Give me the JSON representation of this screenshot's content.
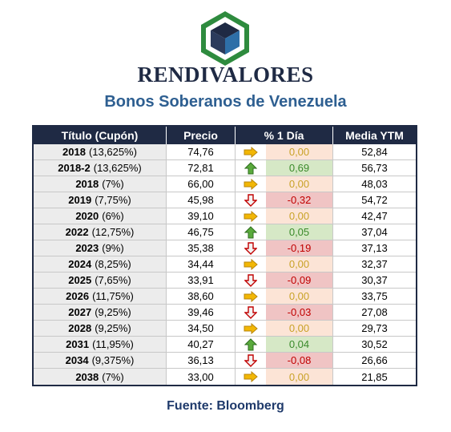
{
  "brand": "RENDIVALORES",
  "subtitle": "Bonos Soberanos de Venezuela",
  "colors": {
    "navy": "#1f2a44",
    "title_blue": "#2e5f91",
    "up": "#3a8a2a",
    "down": "#c00000",
    "flat": "#f2b705"
  },
  "headers": [
    "Título (Cupón)",
    "Precio",
    "% 1 Día",
    "Media YTM"
  ],
  "rows": [
    {
      "year": "2018",
      "coupon": "(13,625%)",
      "price": "74,76",
      "change": "0,00",
      "trend": "flat",
      "ytm": "52,84"
    },
    {
      "year": "2018-2",
      "coupon": "(13,625%)",
      "price": "72,81",
      "change": "0,69",
      "trend": "up",
      "ytm": "56,73"
    },
    {
      "year": "2018",
      "coupon": "(7%)",
      "price": "66,00",
      "change": "0,00",
      "trend": "flat",
      "ytm": "48,03"
    },
    {
      "year": "2019",
      "coupon": "(7,75%)",
      "price": "45,98",
      "change": "-0,32",
      "trend": "down",
      "ytm": "54,72"
    },
    {
      "year": "2020",
      "coupon": "(6%)",
      "price": "39,10",
      "change": "0,00",
      "trend": "flat",
      "ytm": "42,47"
    },
    {
      "year": "2022",
      "coupon": "(12,75%)",
      "price": "46,75",
      "change": "0,05",
      "trend": "up",
      "ytm": "37,04"
    },
    {
      "year": "2023",
      "coupon": "(9%)",
      "price": "35,38",
      "change": "-0,19",
      "trend": "down",
      "ytm": "37,13"
    },
    {
      "year": "2024",
      "coupon": "(8,25%)",
      "price": "34,44",
      "change": "0,00",
      "trend": "flat",
      "ytm": "32,37"
    },
    {
      "year": "2025",
      "coupon": "(7,65%)",
      "price": "33,91",
      "change": "-0,09",
      "trend": "down",
      "ytm": "30,37"
    },
    {
      "year": "2026",
      "coupon": "(11,75%)",
      "price": "38,60",
      "change": "0,00",
      "trend": "flat",
      "ytm": "33,75"
    },
    {
      "year": "2027",
      "coupon": "(9,25%)",
      "price": "39,46",
      "change": "-0,03",
      "trend": "down",
      "ytm": "27,08"
    },
    {
      "year": "2028",
      "coupon": "(9,25%)",
      "price": "34,50",
      "change": "0,00",
      "trend": "flat",
      "ytm": "29,73"
    },
    {
      "year": "2031",
      "coupon": "(11,95%)",
      "price": "40,27",
      "change": "0,04",
      "trend": "up",
      "ytm": "30,52"
    },
    {
      "year": "2034",
      "coupon": "(9,375%)",
      "price": "36,13",
      "change": "-0,08",
      "trend": "down",
      "ytm": "26,66"
    },
    {
      "year": "2038",
      "coupon": "(7%)",
      "price": "33,00",
      "change": "0,00",
      "trend": "flat",
      "ytm": "21,85"
    }
  ],
  "footer": "Fuente: Bloomberg"
}
